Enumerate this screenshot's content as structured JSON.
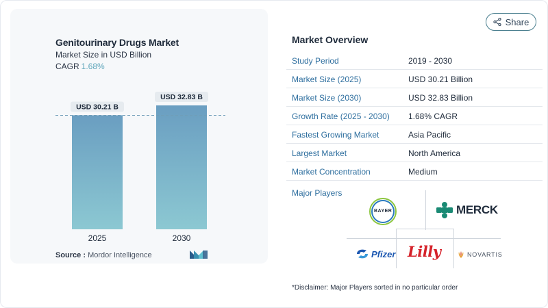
{
  "chart_data": {
    "type": "bar",
    "title": "Genitourinary Drugs Market",
    "subtitle": "Market Size in USD Billion",
    "cagr_label": "CAGR",
    "cagr_value": "1.68%",
    "categories": [
      "2025",
      "2030"
    ],
    "values": [
      30.21,
      32.83
    ],
    "data_labels": [
      "USD 30.21 B",
      "USD 32.83 B"
    ],
    "bar_color_top": "#6a9ec1",
    "bar_color_bottom": "#8cc8d2"
  },
  "source": {
    "label": "Source :",
    "value": "Mordor Intelligence"
  },
  "share_label": "Share",
  "market_overview": {
    "title": "Market Overview",
    "rows": [
      {
        "key": "Study Period",
        "value": "2019 - 2030"
      },
      {
        "key": "Market Size (2025)",
        "value": "USD 30.21 Billion"
      },
      {
        "key": "Market Size (2030)",
        "value": "USD 32.83 Billion"
      },
      {
        "key": "Growth Rate (2025 - 2030)",
        "value": "1.68% CAGR"
      },
      {
        "key": "Fastest Growing Market",
        "value": "Asia Pacific"
      },
      {
        "key": "Largest Market",
        "value": "North America"
      },
      {
        "key": "Market Concentration",
        "value": "Medium"
      }
    ]
  },
  "major_players": {
    "label": "Major Players",
    "bayer_h": "BAYER",
    "bayer_v": "BAYER",
    "merck": "MERCK",
    "pfizer": "Pfizer",
    "lilly": "Lilly",
    "novartis": "NOVARTIS"
  },
  "disclaimer": "*Disclaimer: Major Players sorted in no particular order"
}
